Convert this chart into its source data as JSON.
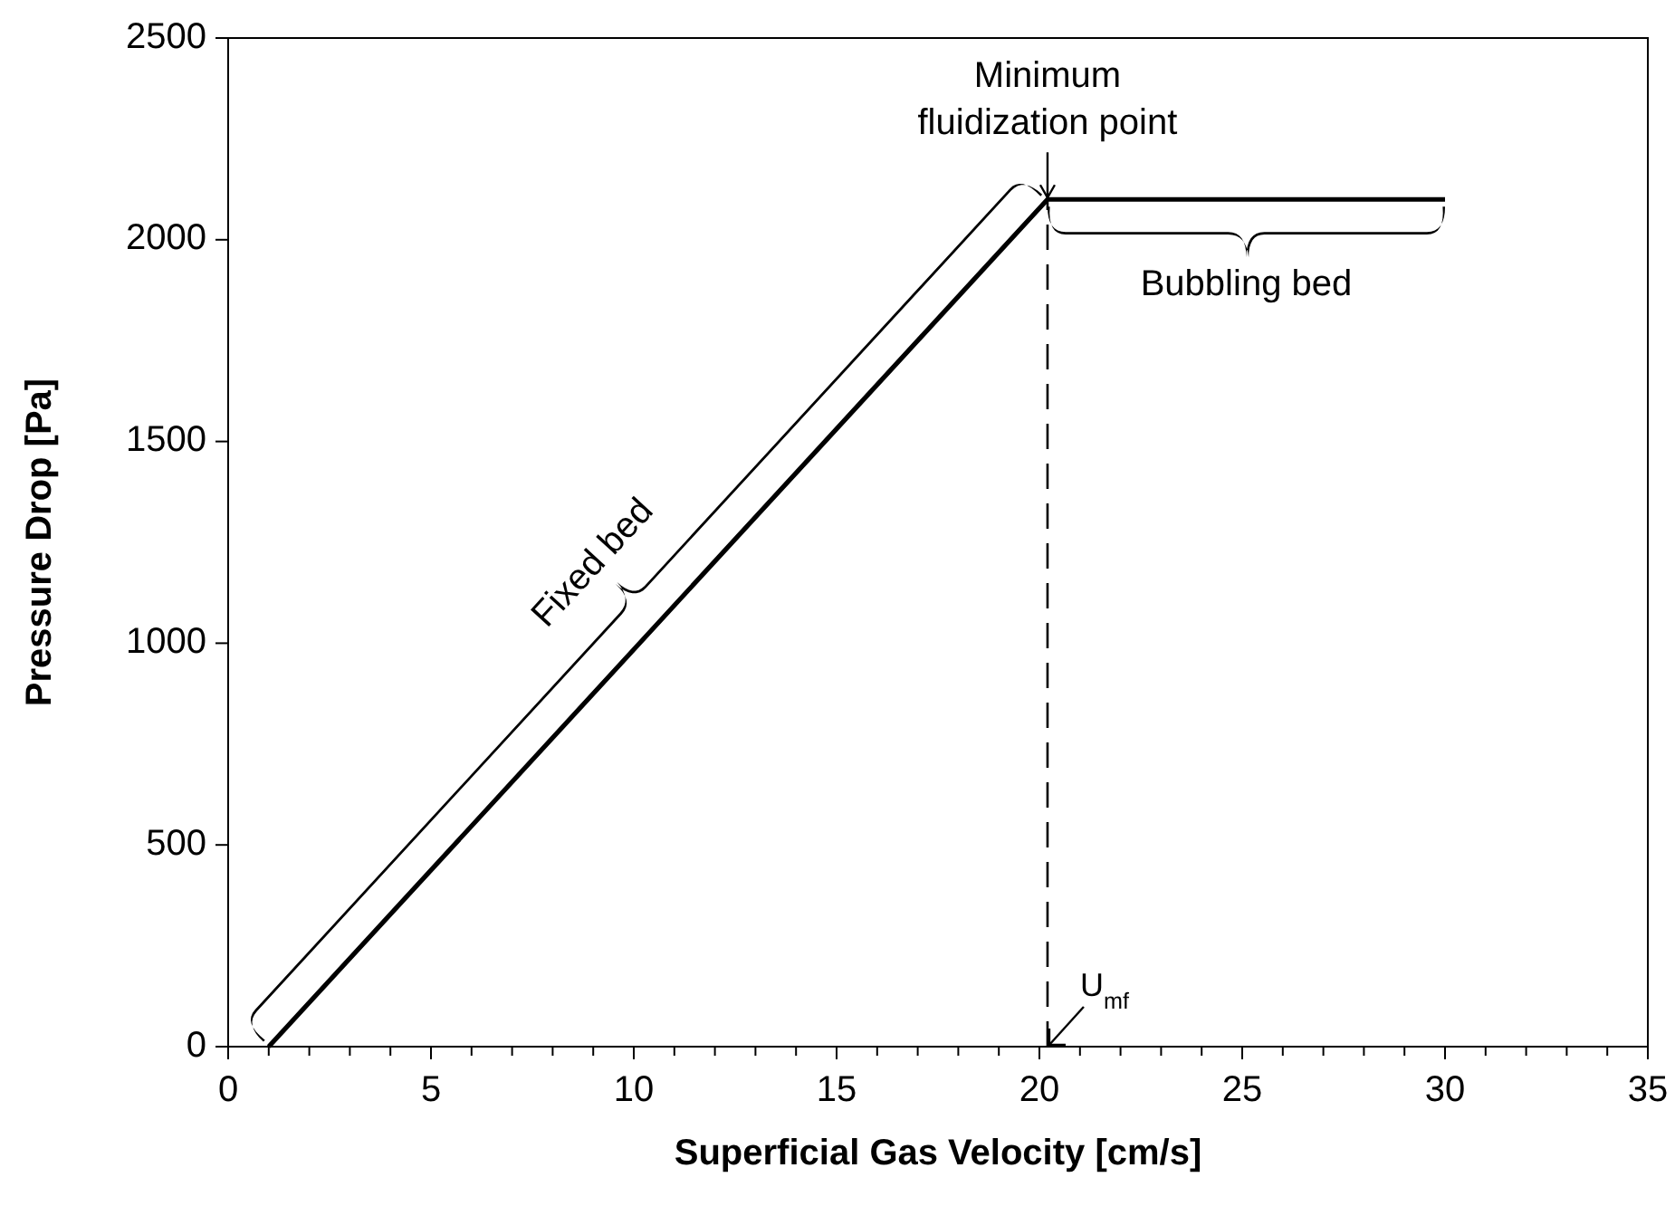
{
  "chart_data": {
    "type": "line",
    "xlabel": "Superficial Gas Velocity [cm/s]",
    "ylabel": "Pressure Drop [Pa]",
    "x": [
      1,
      20.2,
      30
    ],
    "series": [
      {
        "color": "#000000",
        "values": [
          0,
          2100,
          2100
        ]
      },
      {
        "color": "#000000",
        "x": [
          20.2,
          20.2
        ],
        "values": [
          0,
          2100
        ],
        "line_style": "dashed"
      }
    ],
    "xlim": [
      0,
      35
    ],
    "ylim": [
      0,
      2500
    ],
    "xticks": [
      0,
      {
        "value": 1,
        "label": null
      },
      {
        "value": 2,
        "label": null
      },
      {
        "value": 3,
        "label": null
      },
      {
        "value": 4,
        "label": null
      },
      5,
      {
        "value": 6,
        "label": null
      },
      {
        "value": 7,
        "label": null
      },
      {
        "value": 8,
        "label": null
      },
      {
        "value": 9,
        "label": null
      },
      10,
      {
        "value": 11,
        "label": null
      },
      {
        "value": 12,
        "label": null
      },
      {
        "value": 13,
        "label": null
      },
      {
        "value": 14,
        "label": null
      },
      15,
      {
        "value": 16,
        "label": null
      },
      {
        "value": 17,
        "label": null
      },
      {
        "value": 18,
        "label": null
      },
      {
        "value": 19,
        "label": null
      },
      20,
      {
        "value": 21,
        "label": null
      },
      {
        "value": 22,
        "label": null
      },
      {
        "value": 23,
        "label": null
      },
      {
        "value": 24,
        "label": null
      },
      25,
      {
        "value": 26,
        "label": null
      },
      {
        "value": 27,
        "label": null
      },
      {
        "value": 28,
        "label": null
      },
      {
        "value": 29,
        "label": null
      },
      30,
      {
        "value": 31,
        "label": null
      },
      {
        "value": 32,
        "label": null
      },
      {
        "value": 33,
        "label": null
      },
      {
        "value": 34,
        "label": null
      },
      35
    ],
    "yticks": [
      0,
      500,
      1000,
      1500,
      2000,
      2500
    ],
    "annotations": [
      {
        "text": "Minimum fluidization point",
        "x": 20.2,
        "y": 2100
      },
      {
        "text": "U$_{mf}$",
        "x": 20.2,
        "y": 0
      },
      "Fixed bed",
      "Bubbling bed"
    ],
    "marker": "none",
    "line_style": "solid",
    "grid": false
  }
}
